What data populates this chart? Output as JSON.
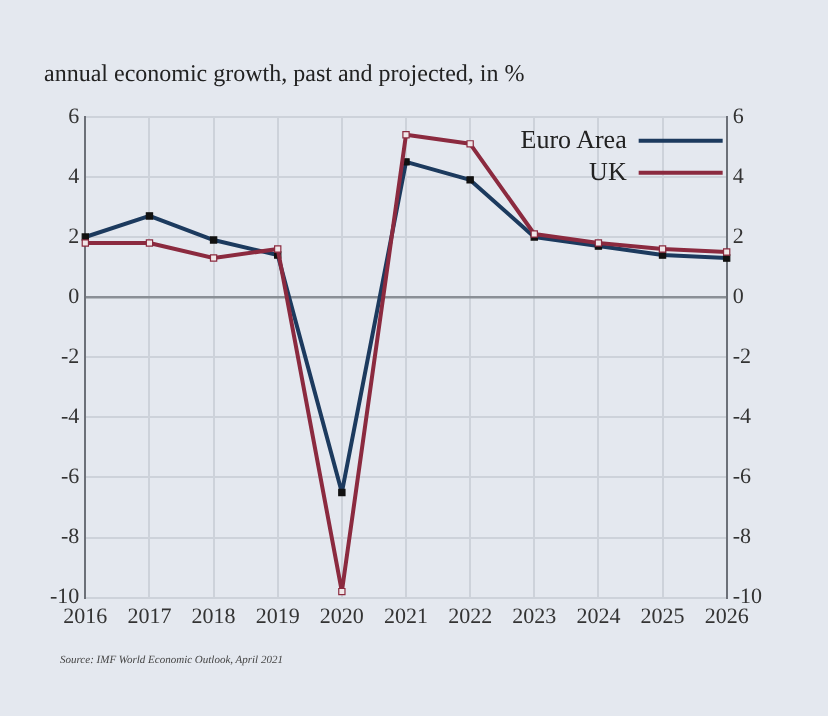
{
  "chart_data": {
    "type": "line",
    "title": "annual economic growth, past and projected, in %",
    "categories": [
      "2016",
      "2017",
      "2018",
      "2019",
      "2020",
      "2021",
      "2022",
      "2023",
      "2024",
      "2025",
      "2026"
    ],
    "series": [
      {
        "name": "Euro Area",
        "color": "#1c3a5e",
        "values": [
          2.0,
          2.7,
          1.9,
          1.4,
          -6.5,
          4.5,
          3.9,
          2.0,
          1.7,
          1.4,
          1.3
        ]
      },
      {
        "name": "UK",
        "color": "#8b2a3f",
        "values": [
          1.8,
          1.8,
          1.3,
          1.6,
          -9.8,
          5.4,
          5.1,
          2.1,
          1.8,
          1.6,
          1.5
        ]
      }
    ],
    "ylim": [
      -10,
      6
    ],
    "yticks": [
      -10,
      -8,
      -6,
      -4,
      -2,
      0,
      2,
      4,
      6
    ],
    "y2lim": [
      -10,
      6
    ],
    "y2ticks": [
      -10,
      -8,
      -6,
      -4,
      -2,
      0,
      2,
      4,
      6
    ],
    "grid": true,
    "legend": "top right",
    "marker": "square",
    "line_style": "solid",
    "annotations": [
      "Source: IMF World Economic Outlook, April 2021"
    ]
  }
}
